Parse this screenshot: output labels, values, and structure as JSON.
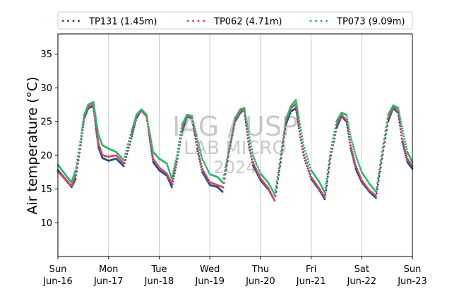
{
  "chart_data": {
    "type": "scatter",
    "title": "",
    "ylabel": "Air temperature (°C)",
    "xlabel": "",
    "x_unit": "days since Sun Jun-16 00:00",
    "xlim": [
      0,
      7
    ],
    "ylim": [
      5,
      38
    ],
    "yticks": [
      10,
      15,
      20,
      25,
      30,
      35
    ],
    "xticks": [
      {
        "x": 0,
        "day": "Sun",
        "date": "Jun-16"
      },
      {
        "x": 1,
        "day": "Mon",
        "date": "Jun-17"
      },
      {
        "x": 2,
        "day": "Tue",
        "date": "Jun-18"
      },
      {
        "x": 3,
        "day": "Wed",
        "date": "Jun-19"
      },
      {
        "x": 4,
        "day": "Thu",
        "date": "Jun-20"
      },
      {
        "x": 5,
        "day": "Fri",
        "date": "Jun-21"
      },
      {
        "x": 6,
        "day": "Sat",
        "date": "Jun-22"
      },
      {
        "x": 7,
        "day": "Sun",
        "date": "Jun-23"
      }
    ],
    "grid": "vertical",
    "legend_position": "top",
    "watermark": [
      "IAG / USP",
      "LAB MICRO",
      "2024"
    ],
    "series": [
      {
        "name": "TP131 (1.45m)",
        "color": "#1f4e8c",
        "points": [
          [
            0.0,
            17.8
          ],
          [
            0.1,
            16.9
          ],
          [
            0.2,
            16.0
          ],
          [
            0.27,
            15.3
          ],
          [
            0.35,
            16.5
          ],
          [
            0.45,
            21.5
          ],
          [
            0.52,
            25.5
          ],
          [
            0.6,
            27.0
          ],
          [
            0.7,
            27.3
          ],
          [
            0.75,
            24.0
          ],
          [
            0.8,
            21.2
          ],
          [
            0.88,
            19.6
          ],
          [
            1.0,
            19.2
          ],
          [
            1.15,
            19.5
          ],
          [
            1.3,
            18.4
          ],
          [
            1.45,
            22.5
          ],
          [
            1.55,
            25.5
          ],
          [
            1.65,
            26.7
          ],
          [
            1.75,
            26.0
          ],
          [
            1.82,
            22.0
          ],
          [
            1.88,
            19.0
          ],
          [
            2.0,
            17.8
          ],
          [
            2.15,
            17.0
          ],
          [
            2.25,
            15.3
          ],
          [
            2.35,
            19.0
          ],
          [
            2.45,
            23.5
          ],
          [
            2.55,
            25.8
          ],
          [
            2.65,
            25.5
          ],
          [
            2.75,
            21.0
          ],
          [
            2.85,
            17.5
          ],
          [
            3.0,
            15.6
          ],
          [
            3.15,
            15.3
          ],
          [
            3.25,
            14.6
          ],
          [
            3.38,
            20.5
          ],
          [
            3.5,
            25.0
          ],
          [
            3.6,
            26.3
          ],
          [
            3.68,
            26.8
          ],
          [
            3.75,
            22.5
          ],
          [
            3.85,
            18.5
          ],
          [
            4.0,
            16.3
          ],
          [
            4.15,
            15.0
          ],
          [
            4.28,
            13.3
          ],
          [
            4.4,
            19.0
          ],
          [
            4.5,
            24.5
          ],
          [
            4.6,
            26.5
          ],
          [
            4.7,
            27.0
          ],
          [
            4.76,
            24.0
          ],
          [
            4.85,
            20.0
          ],
          [
            5.0,
            16.5
          ],
          [
            5.15,
            15.0
          ],
          [
            5.27,
            13.5
          ],
          [
            5.38,
            19.5
          ],
          [
            5.5,
            24.0
          ],
          [
            5.6,
            25.8
          ],
          [
            5.7,
            25.0
          ],
          [
            5.78,
            21.0
          ],
          [
            5.88,
            18.0
          ],
          [
            6.0,
            16.0
          ],
          [
            6.15,
            14.6
          ],
          [
            6.28,
            13.7
          ],
          [
            6.4,
            19.5
          ],
          [
            6.52,
            25.0
          ],
          [
            6.62,
            27.0
          ],
          [
            6.72,
            26.3
          ],
          [
            6.8,
            22.0
          ],
          [
            6.9,
            19.0
          ],
          [
            7.0,
            18.0
          ]
        ]
      },
      {
        "name": "TP062 (4.71m)",
        "color": "#d24a5a",
        "points": [
          [
            0.0,
            17.6
          ],
          [
            0.1,
            16.8
          ],
          [
            0.2,
            15.9
          ],
          [
            0.27,
            15.5
          ],
          [
            0.35,
            17.0
          ],
          [
            0.45,
            22.0
          ],
          [
            0.52,
            25.8
          ],
          [
            0.6,
            27.2
          ],
          [
            0.7,
            27.5
          ],
          [
            0.75,
            24.5
          ],
          [
            0.8,
            21.8
          ],
          [
            0.88,
            20.0
          ],
          [
            1.0,
            19.8
          ],
          [
            1.15,
            20.0
          ],
          [
            1.3,
            18.8
          ],
          [
            1.45,
            23.0
          ],
          [
            1.55,
            25.8
          ],
          [
            1.65,
            26.6
          ],
          [
            1.75,
            25.8
          ],
          [
            1.82,
            22.3
          ],
          [
            1.88,
            19.5
          ],
          [
            2.0,
            18.2
          ],
          [
            2.15,
            17.3
          ],
          [
            2.25,
            15.8
          ],
          [
            2.35,
            19.5
          ],
          [
            2.45,
            24.0
          ],
          [
            2.55,
            26.0
          ],
          [
            2.65,
            25.5
          ],
          [
            2.75,
            21.5
          ],
          [
            2.85,
            18.0
          ],
          [
            3.0,
            16.0
          ],
          [
            3.15,
            15.6
          ],
          [
            3.25,
            15.3
          ],
          [
            3.38,
            20.8
          ],
          [
            3.5,
            25.2
          ],
          [
            3.6,
            26.5
          ],
          [
            3.68,
            26.9
          ],
          [
            3.75,
            23.0
          ],
          [
            3.85,
            19.0
          ],
          [
            4.0,
            16.6
          ],
          [
            4.15,
            15.2
          ],
          [
            4.28,
            13.3
          ],
          [
            4.4,
            19.5
          ],
          [
            4.5,
            25.0
          ],
          [
            4.6,
            27.0
          ],
          [
            4.7,
            27.6
          ],
          [
            4.76,
            24.5
          ],
          [
            4.85,
            20.5
          ],
          [
            5.0,
            16.8
          ],
          [
            5.15,
            15.2
          ],
          [
            5.27,
            13.8
          ],
          [
            5.38,
            20.0
          ],
          [
            5.5,
            24.5
          ],
          [
            5.6,
            26.0
          ],
          [
            5.7,
            25.2
          ],
          [
            5.78,
            21.5
          ],
          [
            5.88,
            18.5
          ],
          [
            6.0,
            16.3
          ],
          [
            6.15,
            14.8
          ],
          [
            6.28,
            14.0
          ],
          [
            6.4,
            20.0
          ],
          [
            6.52,
            25.5
          ],
          [
            6.62,
            27.2
          ],
          [
            6.72,
            26.5
          ],
          [
            6.8,
            22.5
          ],
          [
            6.9,
            19.5
          ],
          [
            7.0,
            18.4
          ]
        ]
      },
      {
        "name": "TP073 (9.09m)",
        "color": "#2db36b",
        "points": [
          [
            0.0,
            18.6
          ],
          [
            0.1,
            17.6
          ],
          [
            0.2,
            16.6
          ],
          [
            0.27,
            16.0
          ],
          [
            0.35,
            17.8
          ],
          [
            0.45,
            22.5
          ],
          [
            0.52,
            26.0
          ],
          [
            0.6,
            27.5
          ],
          [
            0.7,
            27.9
          ],
          [
            0.75,
            25.5
          ],
          [
            0.8,
            23.0
          ],
          [
            0.88,
            21.5
          ],
          [
            1.0,
            21.0
          ],
          [
            1.15,
            20.5
          ],
          [
            1.3,
            19.3
          ],
          [
            1.45,
            23.5
          ],
          [
            1.55,
            26.0
          ],
          [
            1.65,
            26.8
          ],
          [
            1.75,
            26.0
          ],
          [
            1.82,
            23.0
          ],
          [
            1.88,
            20.5
          ],
          [
            2.0,
            19.5
          ],
          [
            2.15,
            18.8
          ],
          [
            2.25,
            16.5
          ],
          [
            2.35,
            20.0
          ],
          [
            2.45,
            24.5
          ],
          [
            2.55,
            26.0
          ],
          [
            2.65,
            25.8
          ],
          [
            2.75,
            22.5
          ],
          [
            2.85,
            19.5
          ],
          [
            3.0,
            17.2
          ],
          [
            3.15,
            16.8
          ],
          [
            3.25,
            16.0
          ],
          [
            3.38,
            21.0
          ],
          [
            3.5,
            25.5
          ],
          [
            3.6,
            26.8
          ],
          [
            3.68,
            27.0
          ],
          [
            3.75,
            24.0
          ],
          [
            3.85,
            20.0
          ],
          [
            4.0,
            17.3
          ],
          [
            4.15,
            16.0
          ],
          [
            4.28,
            14.2
          ],
          [
            4.4,
            20.0
          ],
          [
            4.5,
            25.3
          ],
          [
            4.6,
            27.3
          ],
          [
            4.7,
            28.2
          ],
          [
            4.76,
            25.5
          ],
          [
            4.85,
            21.5
          ],
          [
            5.0,
            17.8
          ],
          [
            5.15,
            16.2
          ],
          [
            5.27,
            14.5
          ],
          [
            5.38,
            20.5
          ],
          [
            5.5,
            25.0
          ],
          [
            5.6,
            26.3
          ],
          [
            5.7,
            26.0
          ],
          [
            5.78,
            22.8
          ],
          [
            5.88,
            20.0
          ],
          [
            6.0,
            17.5
          ],
          [
            6.15,
            15.8
          ],
          [
            6.28,
            14.6
          ],
          [
            6.4,
            20.5
          ],
          [
            6.52,
            26.0
          ],
          [
            6.62,
            27.4
          ],
          [
            6.72,
            27.0
          ],
          [
            6.8,
            24.0
          ],
          [
            6.9,
            20.5
          ],
          [
            7.0,
            19.0
          ]
        ]
      }
    ]
  }
}
